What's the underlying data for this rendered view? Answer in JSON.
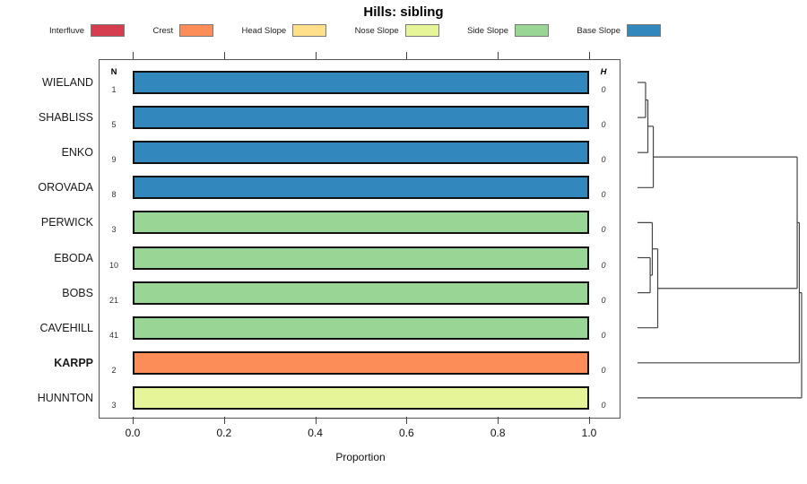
{
  "title": "Hills: sibling",
  "columns": {
    "n_header": "N",
    "h_header": "H"
  },
  "legend": {
    "items": [
      {
        "label": "Interfluve",
        "color": "#D53E4F"
      },
      {
        "label": "Crest",
        "color": "#FC8D59"
      },
      {
        "label": "Head Slope",
        "color": "#FEE08B"
      },
      {
        "label": "Nose Slope",
        "color": "#E6F598"
      },
      {
        "label": "Side Slope",
        "color": "#99D594"
      },
      {
        "label": "Base Slope",
        "color": "#3288BD"
      }
    ]
  },
  "chart_data": {
    "type": "bar",
    "orientation": "horizontal",
    "title": "Hills: sibling",
    "xlabel": "Proportion",
    "xlim": [
      0,
      1
    ],
    "x_ticks": [
      "0.0",
      "0.2",
      "0.4",
      "0.6",
      "0.8",
      "1.0"
    ],
    "grid": false,
    "legend_position": "top",
    "rows": [
      {
        "label": "WIELAND",
        "n": "1",
        "h": "0",
        "category": "Base Slope",
        "proportion": 1.0,
        "color": "#3288BD",
        "bold": false
      },
      {
        "label": "SHABLISS",
        "n": "5",
        "h": "0",
        "category": "Base Slope",
        "proportion": 1.0,
        "color": "#3288BD",
        "bold": false
      },
      {
        "label": "ENKO",
        "n": "9",
        "h": "0",
        "category": "Base Slope",
        "proportion": 1.0,
        "color": "#3288BD",
        "bold": false
      },
      {
        "label": "OROVADA",
        "n": "8",
        "h": "0",
        "category": "Base Slope",
        "proportion": 1.0,
        "color": "#3288BD",
        "bold": false
      },
      {
        "label": "PERWICK",
        "n": "3",
        "h": "0",
        "category": "Side Slope",
        "proportion": 1.0,
        "color": "#99D594",
        "bold": false
      },
      {
        "label": "EBODA",
        "n": "10",
        "h": "0",
        "category": "Side Slope",
        "proportion": 1.0,
        "color": "#99D594",
        "bold": false
      },
      {
        "label": "BOBS",
        "n": "21",
        "h": "0",
        "category": "Side Slope",
        "proportion": 1.0,
        "color": "#99D594",
        "bold": false
      },
      {
        "label": "CAVEHILL",
        "n": "41",
        "h": "0",
        "category": "Side Slope",
        "proportion": 1.0,
        "color": "#99D594",
        "bold": false
      },
      {
        "label": "KARPP",
        "n": "2",
        "h": "0",
        "category": "Crest",
        "proportion": 1.0,
        "color": "#FC8D59",
        "bold": true
      },
      {
        "label": "HUNNTON",
        "n": "3",
        "h": "0",
        "category": "Nose Slope",
        "proportion": 1.0,
        "color": "#E6F598",
        "bold": false
      }
    ],
    "dendrogram": {
      "leaf_order": [
        "WIELAND",
        "SHABLISS",
        "ENKO",
        "OROVADA",
        "PERWICK",
        "EBODA",
        "BOBS",
        "CAVEHILL",
        "KARPP",
        "HUNNTON"
      ],
      "merges": [
        [
          0,
          1,
          0.049
        ],
        [
          10,
          2,
          0.063
        ],
        [
          11,
          3,
          0.096
        ],
        [
          5,
          6,
          0.077
        ],
        [
          4,
          13,
          0.09
        ],
        [
          14,
          7,
          0.123
        ],
        [
          12,
          15,
          0.973
        ],
        [
          16,
          8,
          0.986
        ],
        [
          17,
          9,
          1.0
        ]
      ]
    }
  }
}
